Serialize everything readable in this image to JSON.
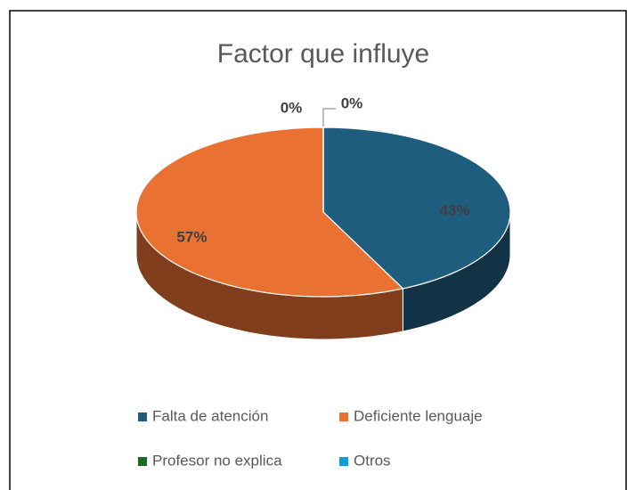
{
  "chart_data": {
    "type": "pie3d",
    "title": "Factor que influye",
    "categories": [
      "Falta de atención",
      "Deficiente lenguaje",
      "Profesor no explica",
      "Otros"
    ],
    "values": [
      43,
      57,
      0,
      0
    ],
    "value_labels": [
      "43%",
      "57%",
      "0%",
      "0%"
    ],
    "colors": [
      "#1f5d7e",
      "#e97132",
      "#196b24",
      "#0f9ed5"
    ],
    "legend": "bottom"
  }
}
